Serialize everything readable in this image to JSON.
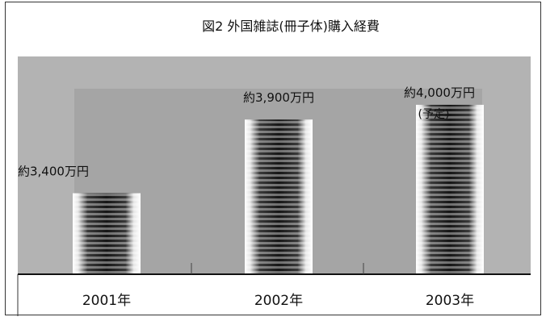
{
  "chart_data": {
    "type": "bar",
    "title": "図2 外国雑誌(冊子体)購入経費",
    "categories": [
      "2001年",
      "2002年",
      "2003年"
    ],
    "values": [
      3400,
      3900,
      4000
    ],
    "data_labels": [
      "約3,400万円",
      "約3,900万円",
      "約4,000万円"
    ],
    "annotations": [
      {
        "category_index": 2,
        "text": "(予定)"
      }
    ],
    "ylim": [
      2850,
      4120
    ],
    "grid": false,
    "legend": "none",
    "colors": {
      "plot_background": "#b3b3b3",
      "inner_band": "#a5a5a5",
      "bar_dark": "#1e1e1e",
      "bar_light": "#ffffff",
      "axis": "#111111",
      "frame": "#333333"
    }
  }
}
